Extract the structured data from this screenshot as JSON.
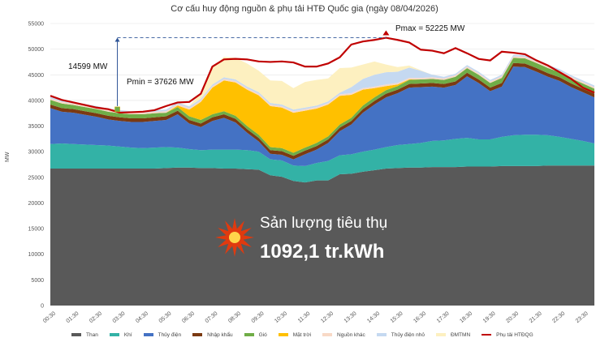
{
  "title": "Cơ cấu huy động nguồn & phụ tải HTĐ Quốc gia (ngày 08/04/2026)",
  "ylabel": "MW",
  "annotations": {
    "pmax": "Pmax = 52225 MW",
    "pmin": "Pmin = 37626 MW",
    "diff": "14599 MW"
  },
  "center_text": {
    "line1": "Sản lượng tiêu thụ",
    "line2": "1092,1 tr.kWh"
  },
  "colors": {
    "than": "#595959",
    "khi": "#33b2a6",
    "thuy_dien": "#4472c4",
    "nhap_khau": "#7b3a12",
    "gio": "#70ad47",
    "mat_troi": "#ffc000",
    "nguon_khac": "#f8d9c6",
    "thuy_dien_nho": "#c5d9f1",
    "dmtmn": "#fdf0c0",
    "phu_tai": "#c00000",
    "explosion": "#e03a0f"
  },
  "chart_data": {
    "type": "area",
    "title": "Cơ cấu huy động nguồn & phụ tải HTĐ Quốc gia (ngày 08/04/2026)",
    "xlabel": "",
    "ylabel": "MW",
    "ylim": [
      0,
      55000
    ],
    "yticks": [
      0,
      5000,
      10000,
      15000,
      20000,
      25000,
      30000,
      35000,
      40000,
      45000,
      50000,
      55000
    ],
    "grid": true,
    "legend": "bottom",
    "x": [
      "00:30",
      "01:00",
      "01:30",
      "02:00",
      "02:30",
      "03:00",
      "03:30",
      "04:00",
      "04:30",
      "05:00",
      "05:30",
      "06:00",
      "06:30",
      "07:00",
      "07:30",
      "08:00",
      "08:30",
      "09:00",
      "09:30",
      "10:00",
      "10:30",
      "11:00",
      "11:30",
      "12:00",
      "12:30",
      "13:00",
      "13:30",
      "14:00",
      "14:30",
      "15:00",
      "15:30",
      "16:00",
      "16:30",
      "17:00",
      "17:30",
      "18:00",
      "18:30",
      "19:00",
      "19:30",
      "20:00",
      "20:30",
      "21:00",
      "21:30",
      "22:00",
      "22:30",
      "23:00",
      "23:30",
      "00:00"
    ],
    "x_ticks": [
      "00:30",
      "01:30",
      "02:30",
      "03:30",
      "04:30",
      "05:30",
      "06:30",
      "07:30",
      "08:30",
      "09:30",
      "10:30",
      "11:30",
      "12:30",
      "13:30",
      "14:30",
      "15:30",
      "16:30",
      "17:30",
      "18:30",
      "19:30",
      "20:30",
      "21:30",
      "22:30",
      "23:30"
    ],
    "series": [
      {
        "name": "Than",
        "key": "than",
        "values": [
          26700,
          26700,
          26700,
          26700,
          26700,
          26700,
          26700,
          26700,
          26700,
          26700,
          26800,
          26900,
          26900,
          26800,
          26800,
          26700,
          26700,
          26600,
          26500,
          25400,
          25100,
          24300,
          24000,
          24400,
          24400,
          25600,
          25700,
          26100,
          26400,
          26700,
          26800,
          26900,
          26900,
          27000,
          27000,
          27000,
          27100,
          27100,
          27100,
          27200,
          27200,
          27200,
          27200,
          27300,
          27300,
          27300,
          27300,
          27300
        ]
      },
      {
        "name": "Khí",
        "key": "khi",
        "values": [
          4800,
          4900,
          4800,
          4700,
          4600,
          4500,
          4300,
          4100,
          4000,
          4100,
          4100,
          3900,
          3600,
          3500,
          3600,
          3700,
          3700,
          3700,
          3500,
          3100,
          3200,
          3000,
          3200,
          3400,
          3800,
          3700,
          3800,
          3900,
          4000,
          4200,
          4500,
          4600,
          4800,
          5100,
          5200,
          5500,
          5600,
          5300,
          5300,
          5700,
          6000,
          6100,
          6100,
          5900,
          5600,
          5200,
          4800,
          4300
        ]
      },
      {
        "name": "Thủy điện",
        "key": "thuy_dien",
        "values": [
          7000,
          6200,
          6100,
          5800,
          5500,
          5100,
          5000,
          5000,
          5100,
          5200,
          5300,
          6500,
          5000,
          4500,
          5600,
          6200,
          5300,
          3400,
          2000,
          1100,
          1100,
          1200,
          2300,
          2600,
          3500,
          4700,
          5800,
          7600,
          8800,
          9700,
          10100,
          11000,
          10900,
          10600,
          10300,
          10500,
          12000,
          11000,
          9400,
          9800,
          13400,
          13200,
          12300,
          11400,
          10900,
          10100,
          9500,
          9000
        ]
      },
      {
        "name": "Nhập khẩu",
        "key": "nhap_khau",
        "values": [
          700,
          700,
          700,
          700,
          700,
          700,
          700,
          700,
          700,
          700,
          700,
          700,
          700,
          700,
          700,
          700,
          700,
          700,
          700,
          700,
          700,
          700,
          700,
          700,
          700,
          700,
          700,
          700,
          700,
          700,
          700,
          700,
          700,
          700,
          700,
          700,
          700,
          700,
          700,
          700,
          700,
          700,
          700,
          700,
          700,
          700,
          700,
          700
        ]
      },
      {
        "name": "Gió",
        "key": "gio",
        "values": [
          900,
          900,
          800,
          800,
          800,
          800,
          800,
          800,
          800,
          800,
          700,
          700,
          700,
          700,
          600,
          600,
          600,
          600,
          600,
          600,
          600,
          600,
          600,
          600,
          600,
          600,
          600,
          700,
          700,
          700,
          700,
          800,
          800,
          800,
          800,
          900,
          900,
          900,
          900,
          1000,
          1000,
          1000,
          1000,
          1000,
          1000,
          1000,
          1000,
          1000
        ]
      },
      {
        "name": "Mặt trời",
        "key": "mat_troi",
        "values": [
          0,
          0,
          0,
          0,
          0,
          0,
          0,
          0,
          0,
          0,
          0,
          300,
          1300,
          3500,
          5200,
          6000,
          6500,
          7100,
          7700,
          8000,
          7900,
          7800,
          7200,
          6700,
          6200,
          5600,
          4500,
          3100,
          1800,
          800,
          300,
          100,
          0,
          0,
          0,
          0,
          0,
          0,
          0,
          0,
          0,
          0,
          0,
          0,
          0,
          0,
          0,
          0
        ]
      },
      {
        "name": "Nguồn khác",
        "key": "nguon_khac",
        "values": [
          300,
          300,
          300,
          300,
          300,
          300,
          300,
          300,
          300,
          300,
          300,
          300,
          300,
          300,
          300,
          300,
          300,
          300,
          300,
          300,
          300,
          300,
          300,
          300,
          300,
          300,
          300,
          300,
          300,
          300,
          300,
          300,
          300,
          300,
          300,
          300,
          300,
          300,
          300,
          300,
          300,
          300,
          300,
          300,
          300,
          300,
          300,
          300
        ]
      },
      {
        "name": "Thủy điện nhỏ",
        "key": "thuy_dien_nho",
        "values": [
          300,
          300,
          300,
          300,
          300,
          300,
          300,
          300,
          300,
          300,
          300,
          300,
          300,
          300,
          300,
          300,
          300,
          300,
          300,
          300,
          300,
          300,
          300,
          300,
          300,
          300,
          1200,
          1800,
          2300,
          2400,
          2200,
          2000,
          1400,
          500,
          300,
          300,
          300,
          300,
          300,
          300,
          300,
          300,
          300,
          300,
          300,
          300,
          300,
          300
        ]
      },
      {
        "name": "ĐMTMN",
        "key": "dmtmn",
        "values": [
          0,
          0,
          0,
          0,
          0,
          0,
          0,
          0,
          0,
          0,
          0,
          0,
          100,
          1200,
          3300,
          4000,
          4200,
          4500,
          4200,
          4400,
          4600,
          4200,
          5000,
          5000,
          4500,
          4800,
          3800,
          2800,
          2600,
          1500,
          900,
          400,
          100,
          0,
          0,
          0,
          0,
          0,
          0,
          0,
          0,
          0,
          0,
          0,
          0,
          0,
          0,
          0
        ]
      },
      {
        "name": "Phụ tải HTĐQG",
        "key": "phu_tai",
        "line": true,
        "values": [
          40900,
          40100,
          39600,
          39100,
          38600,
          38300,
          37626,
          37700,
          37800,
          38100,
          38900,
          39600,
          39700,
          41300,
          46600,
          48000,
          48100,
          48000,
          47600,
          47500,
          47600,
          47400,
          46600,
          46600,
          47200,
          48400,
          50900,
          51500,
          51800,
          52225,
          51800,
          51300,
          49900,
          49700,
          49200,
          50200,
          49200,
          48100,
          47800,
          49500,
          49300,
          49000,
          47800,
          46800,
          45500,
          44200,
          42500,
          41500
        ]
      }
    ]
  }
}
